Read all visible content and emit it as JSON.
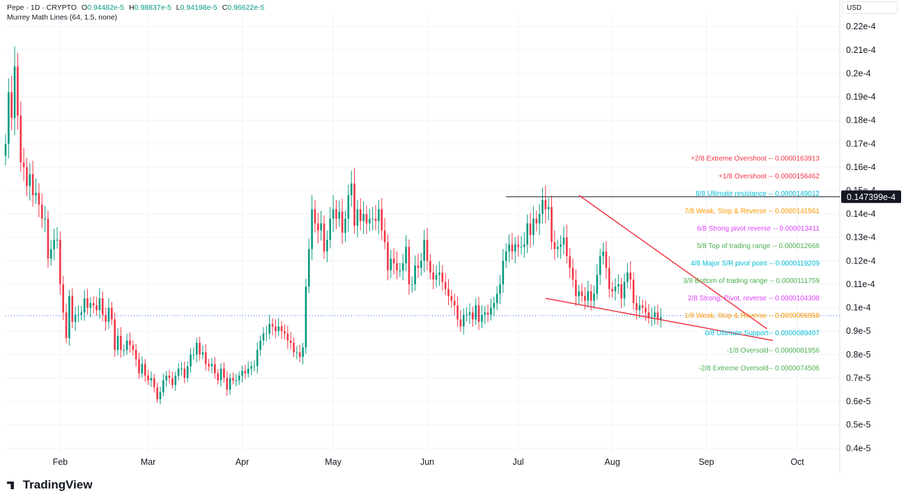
{
  "legend": {
    "symbol": "Pepe · 1D · CRYPTO",
    "open_label": "O",
    "open": "0.94482e-5",
    "high_label": "H",
    "high": "0.98837e-5",
    "low_label": "L",
    "low": "0.94198e-5",
    "close_label": "C",
    "close": "0.96622e-5",
    "indicator": "Murrey Math Lines (64, 1.5, none)"
  },
  "currency": "USD",
  "branding": "TradingView",
  "colors": {
    "up": "#089981",
    "down": "#f23645",
    "grid": "#f0f3fa",
    "trend": "#f23645",
    "price_line": "#2962ff"
  },
  "chart_data": {
    "type": "candlestick",
    "y_axis": {
      "ylim": [
        3.8e-06,
        2.26e-05
      ],
      "ticks": [
        {
          "v": 4e-06,
          "label": "0.4e-5"
        },
        {
          "v": 5e-06,
          "label": "0.5e-5"
        },
        {
          "v": 6e-06,
          "label": "0.6e-5"
        },
        {
          "v": 7e-06,
          "label": "0.7e-5"
        },
        {
          "v": 8e-06,
          "label": "0.8e-5"
        },
        {
          "v": 9e-06,
          "label": "0.9e-5"
        },
        {
          "v": 1e-05,
          "label": "0.1e-4"
        },
        {
          "v": 1.1e-05,
          "label": "0.11e-4"
        },
        {
          "v": 1.2e-05,
          "label": "0.12e-4"
        },
        {
          "v": 1.3e-05,
          "label": "0.13e-4"
        },
        {
          "v": 1.4e-05,
          "label": "0.14e-4"
        },
        {
          "v": 1.5e-05,
          "label": "0.15e-4"
        },
        {
          "v": 1.6e-05,
          "label": "0.16e-4"
        },
        {
          "v": 1.7e-05,
          "label": "0.17e-4"
        },
        {
          "v": 1.8e-05,
          "label": "0.18e-4"
        },
        {
          "v": 1.9e-05,
          "label": "0.19e-4"
        },
        {
          "v": 2e-05,
          "label": "0.2e-4"
        },
        {
          "v": 2.1e-05,
          "label": "0.21e-4"
        },
        {
          "v": 2.2e-05,
          "label": "0.22e-4"
        }
      ]
    },
    "x_axis": {
      "start": "2024-01-14",
      "end": "2024-10-15",
      "ticks": [
        {
          "date": "2024-02-01",
          "label": "Feb"
        },
        {
          "date": "2024-03-01",
          "label": "Mar"
        },
        {
          "date": "2024-04-01",
          "label": "Apr"
        },
        {
          "date": "2024-05-01",
          "label": "May"
        },
        {
          "date": "2024-06-01",
          "label": "Jun"
        },
        {
          "date": "2024-07-01",
          "label": "Jul"
        },
        {
          "date": "2024-08-01",
          "label": "Aug"
        },
        {
          "date": "2024-09-01",
          "label": "Sep"
        },
        {
          "date": "2024-10-01",
          "label": "Oct"
        }
      ]
    },
    "start_date": "2024-01-14",
    "closes": [
      1.7e-05,
      1.92e-05,
      1.81e-05,
      2.03e-05,
      1.82e-05,
      1.62e-05,
      1.6e-05,
      1.52e-05,
      1.57e-05,
      1.48e-05,
      1.49e-05,
      1.44e-05,
      1.38e-05,
      1.38e-05,
      1.21e-05,
      1.25e-05,
      1.29e-05,
      1.29e-05,
      1.1e-05,
      9.8e-06,
      8.7e-06,
      1.05e-05,
      9.4e-06,
      9.7e-06,
      9.7e-06,
      9.8e-06,
      1.04e-05,
      1e-05,
      1.02e-05,
      1.01e-05,
      9.9e-06,
      1.04e-05,
      9.7e-06,
      9.4e-06,
      1e-05,
      9.5e-06,
      8.2e-06,
      8.8e-06,
      8.2e-06,
      8.2e-06,
      8.6e-06,
      8.4e-06,
      8.2e-06,
      7.8e-06,
      7.2e-06,
      7.6e-06,
      7.1e-06,
      6.9e-06,
      7e-06,
      6.6e-06,
      6.1e-06,
      6.4e-06,
      6.9e-06,
      7.1e-06,
      7e-06,
      6.7e-06,
      7.1e-06,
      7.4e-06,
      7.4e-06,
      7e-06,
      7.5e-06,
      8e-06,
      8e-06,
      8.5e-06,
      8e-06,
      8.1e-06,
      7.6e-06,
      7.5e-06,
      7.6e-06,
      7.2e-06,
      6.9e-06,
      7.4e-06,
      7e-06,
      6.5e-06,
      7e-06,
      6.9e-06,
      6.9e-06,
      7.1e-06,
      7.3e-06,
      7.2e-06,
      7.4e-06,
      7.5e-06,
      7.5e-06,
      8.2e-06,
      8.6e-06,
      8.9e-06,
      8.9e-06,
      9.3e-06,
      9.2e-06,
      9e-06,
      9.2e-06,
      9e-06,
      8.9e-06,
      8.6e-06,
      8.5e-06,
      8.1e-06,
      8.1e-06,
      7.9e-06,
      8.3e-06,
      1.09e-05,
      1.25e-05,
      1.42e-05,
      1.36e-05,
      1.33e-05,
      1.36e-05,
      1.24e-05,
      1.29e-05,
      1.38e-05,
      1.42e-05,
      1.38e-05,
      1.41e-05,
      1.32e-05,
      1.38e-05,
      1.48e-05,
      1.53e-05,
      1.35e-05,
      1.42e-05,
      1.37e-05,
      1.4e-05,
      1.36e-05,
      1.38e-05,
      1.38e-05,
      1.37e-05,
      1.42e-05,
      1.33e-05,
      1.28e-05,
      1.16e-05,
      1.21e-05,
      1.19e-05,
      1.16e-05,
      1.16e-05,
      1.19e-05,
      1.26e-05,
      1.1e-05,
      1.1e-05,
      1.18e-05,
      1.17e-05,
      1.2e-05,
      1.29e-05,
      1.2e-05,
      1.15e-05,
      1.12e-05,
      1.14e-05,
      1.15e-05,
      1.11e-05,
      1.08e-05,
      1.05e-05,
      1.03e-05,
      1.01e-05,
      9.5e-06,
      9.2e-06,
      9.7e-06,
      9.7e-06,
      9.8e-06,
      9.5e-06,
      1.01e-05,
      9.4e-06,
      9.7e-06,
      9.8e-06,
      9.7e-06,
      1e-05,
      1.02e-05,
      1.06e-05,
      1.1e-05,
      1.2e-05,
      1.24e-05,
      1.27e-05,
      1.24e-05,
      1.27e-05,
      1.26e-05,
      1.26e-05,
      1.27e-05,
      1.36e-05,
      1.31e-05,
      1.38e-05,
      1.36e-05,
      1.4e-05,
      1.46e-05,
      1.42e-05,
      1.43e-05,
      1.28e-05,
      1.25e-05,
      1.26e-05,
      1.27e-05,
      1.3e-05,
      1.22e-05,
      1.17e-05,
      1.12e-05,
      1.05e-05,
      1.07e-05,
      1.05e-05,
      1.03e-05,
      1.07e-05,
      1.03e-05,
      1.06e-05,
      1.14e-05,
      1.22e-05,
      1.24e-05,
      1.17e-05,
      1.08e-05,
      1.07e-05,
      1.09e-05,
      1.1e-05,
      1.04e-05,
      1.11e-05,
      1.15e-05,
      1.12e-05,
      1.02e-05,
      9.9e-06,
      1.01e-05,
      1e-05,
      9.8e-06,
      9.6e-06,
      9.6e-06,
      9.8e-06,
      9.5e-06,
      9.6e-06
    ],
    "murrey_lines": [
      {
        "label": "+2/8 Extreme Overshoot --  0.0000163913",
        "value": 1.63913e-05,
        "color": "#f23645"
      },
      {
        "label": "+1/8 Overshoot --  0.0000156462",
        "value": 1.56462e-05,
        "color": "#f23645"
      },
      {
        "label": "8/8 Ultimate resistance --  0.0000149012",
        "value": 1.49012e-05,
        "color": "#00bcd4"
      },
      {
        "label": "7/8 Weak, Stop & Reverse --  0.0000141561",
        "value": 1.41561e-05,
        "color": "#ff9800"
      },
      {
        "label": "6/8 Strong pivot reverse --  0.000013411",
        "value": 1.3411e-05,
        "color": "#e040fb"
      },
      {
        "label": "5/8 Top of trading range --  0.000012666",
        "value": 1.2666e-05,
        "color": "#4caf50"
      },
      {
        "label": "4/8 Major S/R pivot point --  0.0000119209",
        "value": 1.19209e-05,
        "color": "#00bcd4"
      },
      {
        "label": "3/8 Bottom of trading range --  0.0000111759",
        "value": 1.11759e-05,
        "color": "#4caf50"
      },
      {
        "label": "2/8 Strong, Pivot, reverse --  0.0000104308",
        "value": 1.04308e-05,
        "color": "#e040fb"
      },
      {
        "label": "1/8 Weak, Stop & Reverse --  0.0000096858",
        "value": 9.6858e-06,
        "color": "#ff9800"
      },
      {
        "label": "0/8 Ultimate Support--  0.0000089407",
        "value": 8.9407e-06,
        "color": "#00bcd4"
      },
      {
        "label": "-1/8 Oversold--  0.0000081956",
        "value": 8.1956e-06,
        "color": "#4caf50"
      },
      {
        "label": "-2/8 Extreme Oversold--  0.0000074506",
        "value": 7.4506e-06,
        "color": "#4caf50"
      }
    ],
    "horizontal_line": {
      "value": 1.47399e-05,
      "label": "0.147399e-4",
      "from": "2024-06-27"
    },
    "trendlines": [
      {
        "from_date": "2024-07-21",
        "from": 1.48e-05,
        "to_date": "2024-09-21",
        "to": 9.1e-06
      },
      {
        "from_date": "2024-07-10",
        "from": 1.04e-05,
        "to_date": "2024-09-23",
        "to": 8.6e-06
      }
    ],
    "last_price": 9.6622e-06
  }
}
